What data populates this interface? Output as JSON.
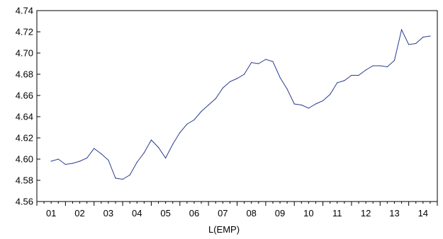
{
  "chart_data": {
    "type": "line",
    "title": "",
    "xlabel": "L(EMP)",
    "ylabel": "",
    "ylim": [
      4.56,
      4.74
    ],
    "y_ticks": [
      "4.56",
      "4.58",
      "4.60",
      "4.62",
      "4.64",
      "4.66",
      "4.68",
      "4.70",
      "4.72",
      "4.74"
    ],
    "x_ticks": [
      "01",
      "02",
      "03",
      "04",
      "05",
      "06",
      "07",
      "08",
      "09",
      "10",
      "11",
      "12",
      "13",
      "14"
    ],
    "grid": false,
    "series_color": "#2b3b8f",
    "series": [
      {
        "name": "",
        "x": [
          2000.5,
          2000.75,
          2001.0,
          2001.25,
          2001.5,
          2001.75,
          2002.0,
          2002.25,
          2002.5,
          2002.75,
          2003.0,
          2003.25,
          2003.5,
          2003.75,
          2004.0,
          2004.25,
          2004.5,
          2004.75,
          2005.0,
          2005.25,
          2005.5,
          2005.75,
          2006.0,
          2006.25,
          2006.5,
          2006.75,
          2007.0,
          2007.25,
          2007.5,
          2007.75,
          2008.0,
          2008.25,
          2008.5,
          2008.75,
          2009.0,
          2009.25,
          2009.5,
          2009.75,
          2010.0,
          2010.25,
          2010.5,
          2010.75,
          2011.0,
          2011.25,
          2011.5,
          2011.75,
          2012.0,
          2012.25,
          2012.5,
          2012.75,
          2013.0,
          2013.25,
          2013.5,
          2013.75
        ],
        "values": [
          4.598,
          4.6,
          4.595,
          4.596,
          4.598,
          4.601,
          4.61,
          4.605,
          4.599,
          4.582,
          4.581,
          4.585,
          4.597,
          4.606,
          4.618,
          4.611,
          4.601,
          4.614,
          4.625,
          4.633,
          4.637,
          4.645,
          4.651,
          4.657,
          4.667,
          4.673,
          4.676,
          4.68,
          4.691,
          4.69,
          4.694,
          4.692,
          4.677,
          4.666,
          4.652,
          4.651,
          4.648,
          4.652,
          4.655,
          4.661,
          4.672,
          4.674,
          4.679,
          4.679,
          4.684,
          4.688,
          4.688,
          4.687,
          4.693,
          4.722,
          4.708,
          4.709,
          4.715,
          4.716
        ]
      }
    ]
  }
}
